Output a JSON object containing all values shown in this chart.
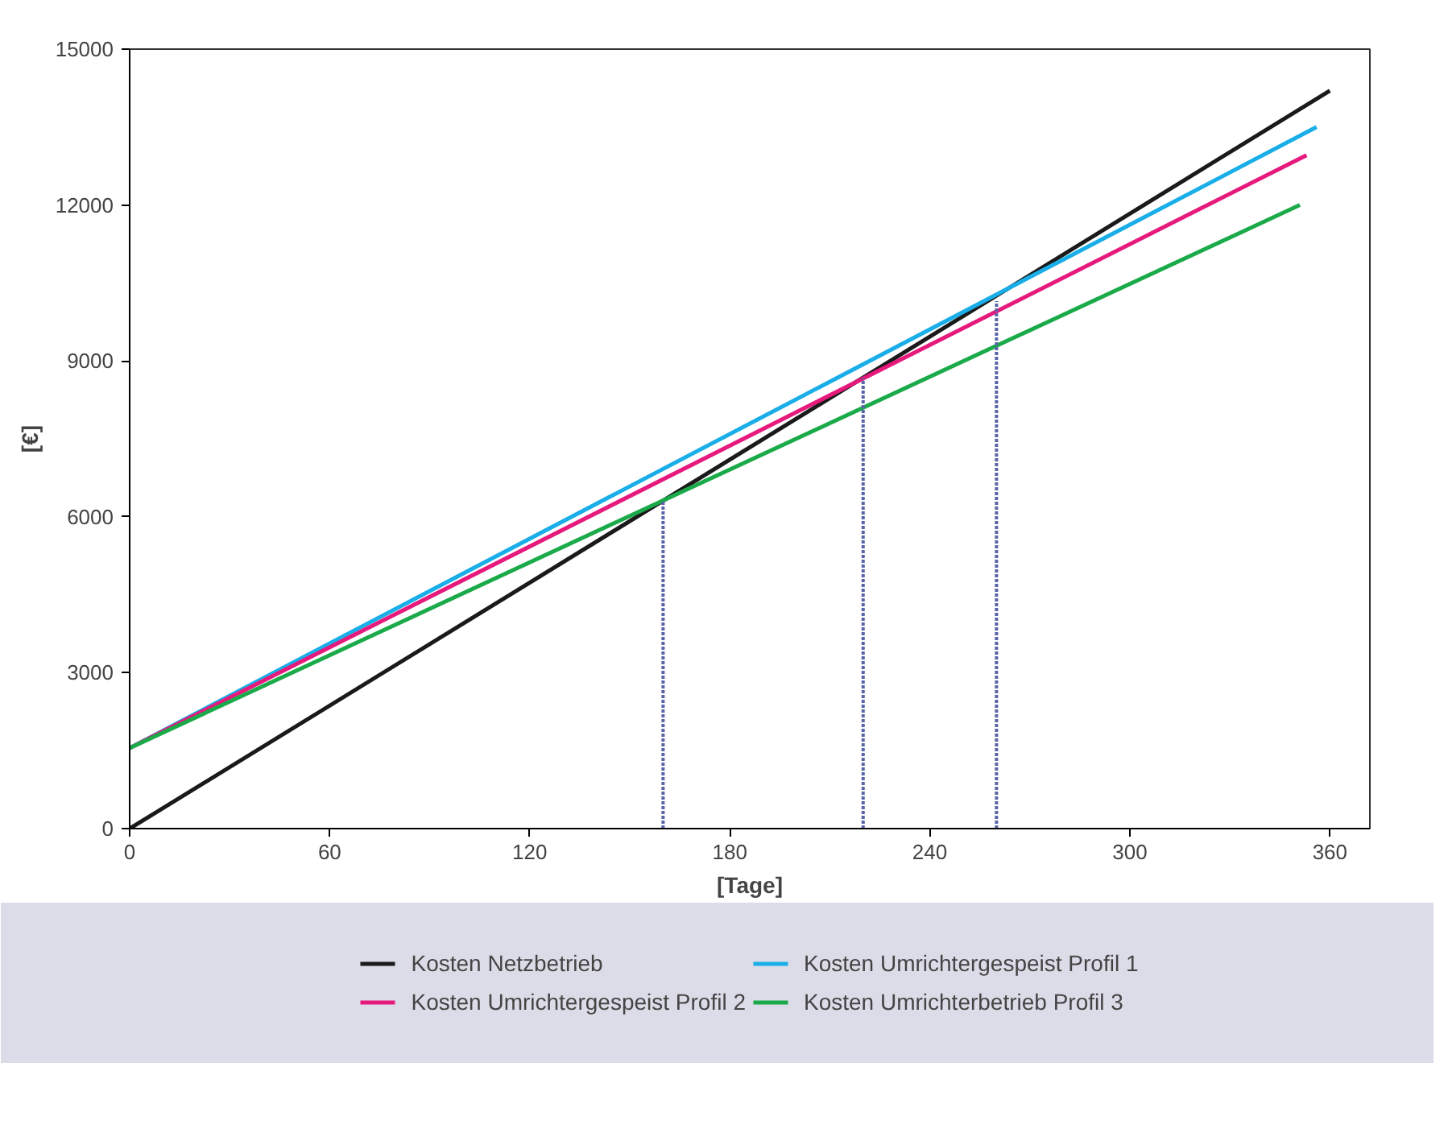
{
  "chart_data": {
    "type": "line",
    "xlabel": "[Tage]",
    "ylabel": "[€]",
    "xlim": [
      0,
      372
    ],
    "ylim": [
      0,
      15000
    ],
    "xticks": [
      0,
      60,
      120,
      180,
      240,
      300,
      360
    ],
    "yticks": [
      0,
      3000,
      6000,
      9000,
      12000,
      15000
    ],
    "legend": "bottom",
    "line_style": "solid",
    "series": [
      {
        "name": "Kosten Netzbetrieb",
        "color": "#1a1a1a",
        "x": [
          0,
          360
        ],
        "values": [
          0,
          14200
        ]
      },
      {
        "name": "Kosten Umrichtergespeist Profil 1",
        "color": "#1aaee8",
        "x": [
          0,
          356
        ],
        "values": [
          1550,
          13500
        ]
      },
      {
        "name": "Kosten Umrichtergespeist Profil 2",
        "color": "#e6197d",
        "x": [
          0,
          353
        ],
        "values": [
          1550,
          12960
        ]
      },
      {
        "name": "Kosten Umrichterbetrieb Profil 3",
        "color": "#1aaa4a",
        "x": [
          0,
          351
        ],
        "values": [
          1550,
          12000
        ]
      },
      {
        "color": "#5a64a8",
        "line_style": "dotted",
        "x": [
          160,
          160
        ],
        "values": [
          0,
          6300
        ]
      },
      {
        "color": "#5a64a8",
        "line_style": "dotted",
        "x": [
          220,
          220
        ],
        "values": [
          0,
          8670
        ]
      },
      {
        "color": "#5a64a8",
        "line_style": "dotted",
        "x": [
          260,
          260
        ],
        "values": [
          0,
          10150
        ]
      }
    ]
  }
}
